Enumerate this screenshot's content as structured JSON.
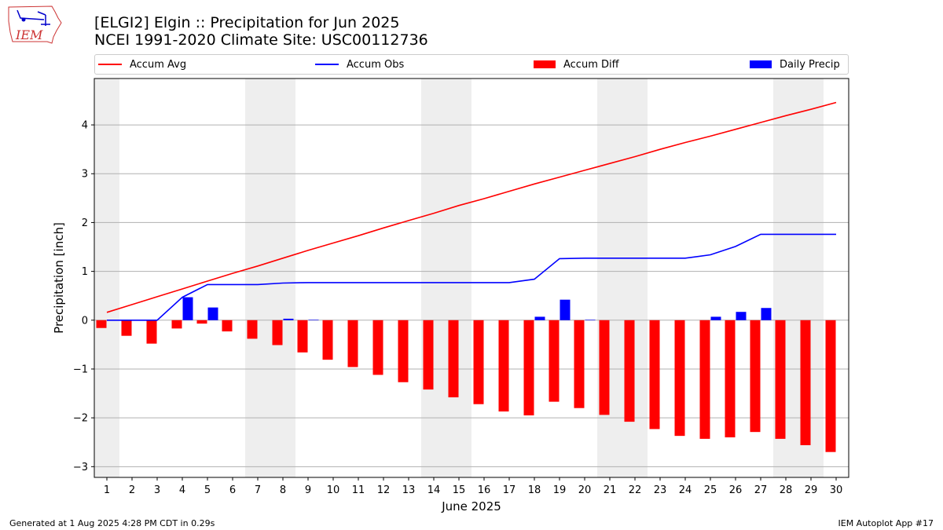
{
  "logo": {
    "text": "IEM"
  },
  "header": {
    "title_line1": "[ELGI2] Elgin :: Precipitation for Jun 2025",
    "title_line2": "NCEI 1991-2020 Climate Site: USC00112736"
  },
  "legend": {
    "items": [
      {
        "label": "Accum Avg",
        "kind": "line",
        "color": "#ff0000"
      },
      {
        "label": "Accum Obs",
        "kind": "line",
        "color": "#0000ff"
      },
      {
        "label": "Accum Diff",
        "kind": "patch",
        "color": "#ff0000"
      },
      {
        "label": "Daily Precip",
        "kind": "patch",
        "color": "#0000ff"
      }
    ]
  },
  "footer": {
    "left": "Generated at 1 Aug 2025 4:28 PM CDT in 0.29s",
    "right": "IEM Autoplot App #17"
  },
  "chart_data": {
    "type": "bar",
    "xlabel": "June 2025",
    "ylabel": "Precipitation [inch]",
    "xlim": [
      0.5,
      30.5
    ],
    "ylim": [
      -3.22,
      4.95
    ],
    "yticks": [
      -3,
      -2,
      -1,
      0,
      1,
      2,
      3,
      4
    ],
    "ytick_labels": [
      "−3",
      "−2",
      "−1",
      "0",
      "1",
      "2",
      "3",
      "4"
    ],
    "grid": "horizontal",
    "weekend_shading": [
      [
        0.5,
        1.5
      ],
      [
        6.5,
        8.5
      ],
      [
        13.5,
        15.5
      ],
      [
        20.5,
        22.5
      ],
      [
        27.5,
        29.5
      ]
    ],
    "days": [
      1,
      2,
      3,
      4,
      5,
      6,
      7,
      8,
      9,
      10,
      11,
      12,
      13,
      14,
      15,
      16,
      17,
      18,
      19,
      20,
      21,
      22,
      23,
      24,
      25,
      26,
      27,
      28,
      29,
      30
    ],
    "series": [
      {
        "name": "Accum Avg",
        "kind": "line",
        "color": "#ff0000",
        "values": [
          0.16,
          0.32,
          0.48,
          0.64,
          0.8,
          0.96,
          1.11,
          1.27,
          1.43,
          1.58,
          1.73,
          1.89,
          2.04,
          2.19,
          2.35,
          2.49,
          2.64,
          2.79,
          2.93,
          3.07,
          3.21,
          3.35,
          3.5,
          3.64,
          3.77,
          3.91,
          4.05,
          4.19,
          4.32,
          4.46
        ]
      },
      {
        "name": "Accum Obs",
        "kind": "line",
        "color": "#0000ff",
        "values": [
          0.0,
          0.0,
          0.0,
          0.47,
          0.73,
          0.73,
          0.73,
          0.76,
          0.77,
          0.77,
          0.77,
          0.77,
          0.77,
          0.77,
          0.77,
          0.77,
          0.77,
          0.84,
          1.26,
          1.27,
          1.27,
          1.27,
          1.27,
          1.27,
          1.34,
          1.51,
          1.76,
          1.76,
          1.76,
          1.76
        ]
      },
      {
        "name": "Accum Diff",
        "kind": "bar",
        "color": "#ff0000",
        "values": [
          -0.16,
          -0.32,
          -0.48,
          -0.17,
          -0.07,
          -0.23,
          -0.38,
          -0.51,
          -0.66,
          -0.81,
          -0.96,
          -1.12,
          -1.27,
          -1.42,
          -1.58,
          -1.72,
          -1.87,
          -1.95,
          -1.67,
          -1.8,
          -1.94,
          -2.08,
          -2.23,
          -2.37,
          -2.43,
          -2.4,
          -2.29,
          -2.43,
          -2.56,
          -2.7
        ]
      },
      {
        "name": "Daily Precip",
        "kind": "bar",
        "color": "#0000ff",
        "values": [
          0.0,
          0.0,
          0.0,
          0.47,
          0.26,
          0.0,
          0.0,
          0.03,
          0.01,
          0.0,
          0.0,
          0.0,
          0.0,
          0.0,
          0.0,
          0.0,
          0.0,
          0.07,
          0.42,
          0.01,
          0.0,
          0.0,
          0.0,
          0.0,
          0.07,
          0.17,
          0.25,
          0.0,
          0.0,
          0.0
        ]
      }
    ]
  }
}
